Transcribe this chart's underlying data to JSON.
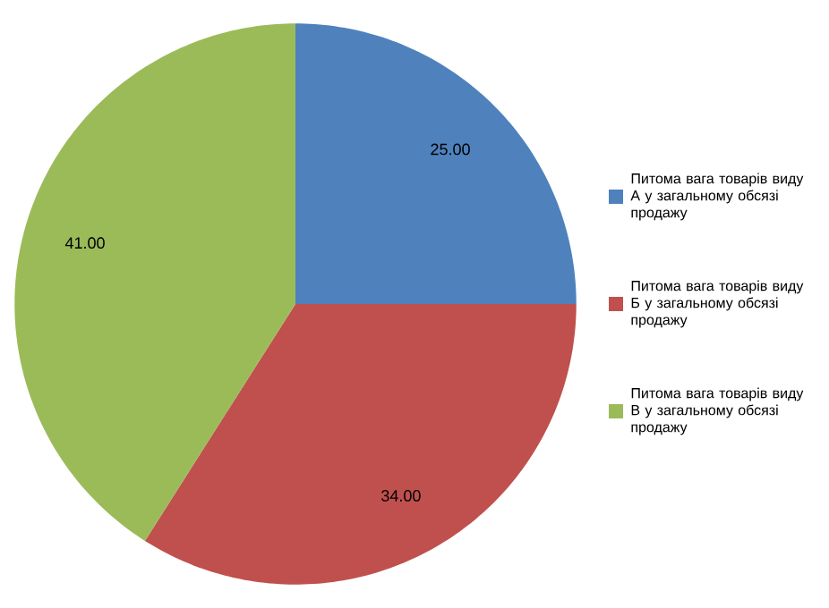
{
  "chart_data": {
    "type": "pie",
    "categories": [
      "Питома вага товарів виду А у загальному обсязі продажу",
      "Питома вага товарів виду Б у загальному обсязі продажу",
      "Питома вага товарів виду В у загальному обсязі продажу"
    ],
    "values": [
      25,
      34,
      41
    ],
    "value_labels": [
      "25.00",
      "34.00",
      "41.00"
    ],
    "colors": [
      "#4f81bd",
      "#c0504d",
      "#9bbb59"
    ],
    "legend": "right"
  }
}
